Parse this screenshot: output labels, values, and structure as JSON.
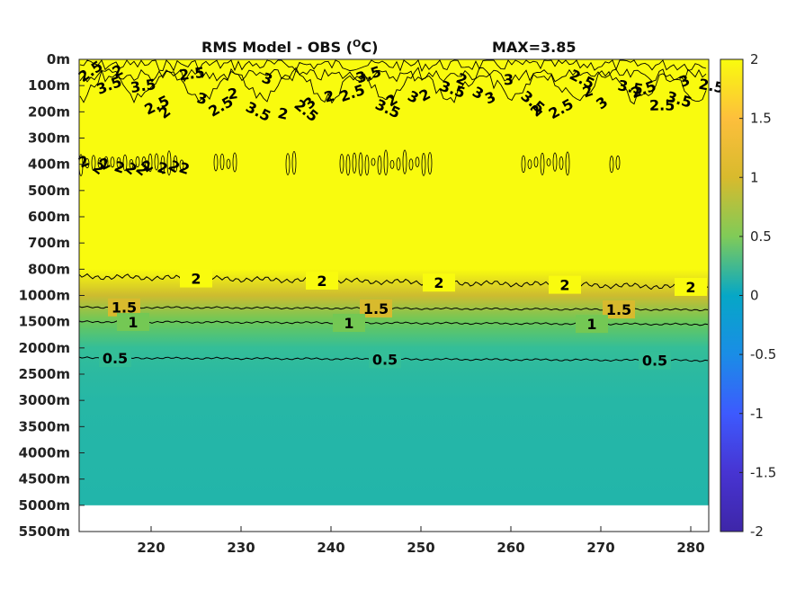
{
  "chart_data": {
    "type": "heatmap",
    "title": "RMS Model - OBS (",
    "title_unit": "C)",
    "title_degree": "O",
    "max_label": "MAX=3.85",
    "x": {
      "ticks": [
        220,
        230,
        240,
        250,
        260,
        270,
        280
      ],
      "range": [
        212,
        282
      ]
    },
    "y": {
      "tick_labels": [
        "0m",
        "100m",
        "200m",
        "300m",
        "400m",
        "500m",
        "600m",
        "700m",
        "800m",
        "1000m",
        "1500m",
        "2000m",
        "2500m",
        "3000m",
        "3500m",
        "4000m",
        "4500m",
        "5000m",
        "5500m"
      ],
      "data_extent_label": "5000m"
    },
    "colorbar": {
      "ticks": [
        "2",
        "1.5",
        "1",
        "0.5",
        "0",
        "-0.5",
        "-1",
        "-1.5",
        "-2"
      ],
      "range": [
        -2,
        2
      ],
      "colormap": "parula"
    },
    "contours": [
      {
        "level": "2",
        "depth_label": "800m",
        "labels_x": [
          225,
          239,
          252,
          266,
          280
        ]
      },
      {
        "level": "1.5",
        "depth_label": "1000m",
        "labels_x": [
          217,
          245,
          272
        ]
      },
      {
        "level": "1",
        "depth_label": "1500m",
        "labels_x": [
          218,
          242,
          269
        ]
      },
      {
        "level": "0.5",
        "depth_label": "2000m",
        "labels_x": [
          216,
          246,
          276
        ]
      }
    ],
    "field_by_depth": [
      {
        "depth": "0m",
        "value": 2.0
      },
      {
        "depth": "800m",
        "value": 2.0
      },
      {
        "depth": "1000m",
        "value": 1.45
      },
      {
        "depth": "1500m",
        "value": 0.95
      },
      {
        "depth": "2000m",
        "value": 0.5
      },
      {
        "depth": "2500m",
        "value": 0.4
      },
      {
        "depth": "3000m",
        "value": 0.35
      },
      {
        "depth": "5000m",
        "value": 0.3
      }
    ],
    "noisy_contour_labels": [
      "2.5",
      "3",
      "3.5",
      "2"
    ]
  }
}
